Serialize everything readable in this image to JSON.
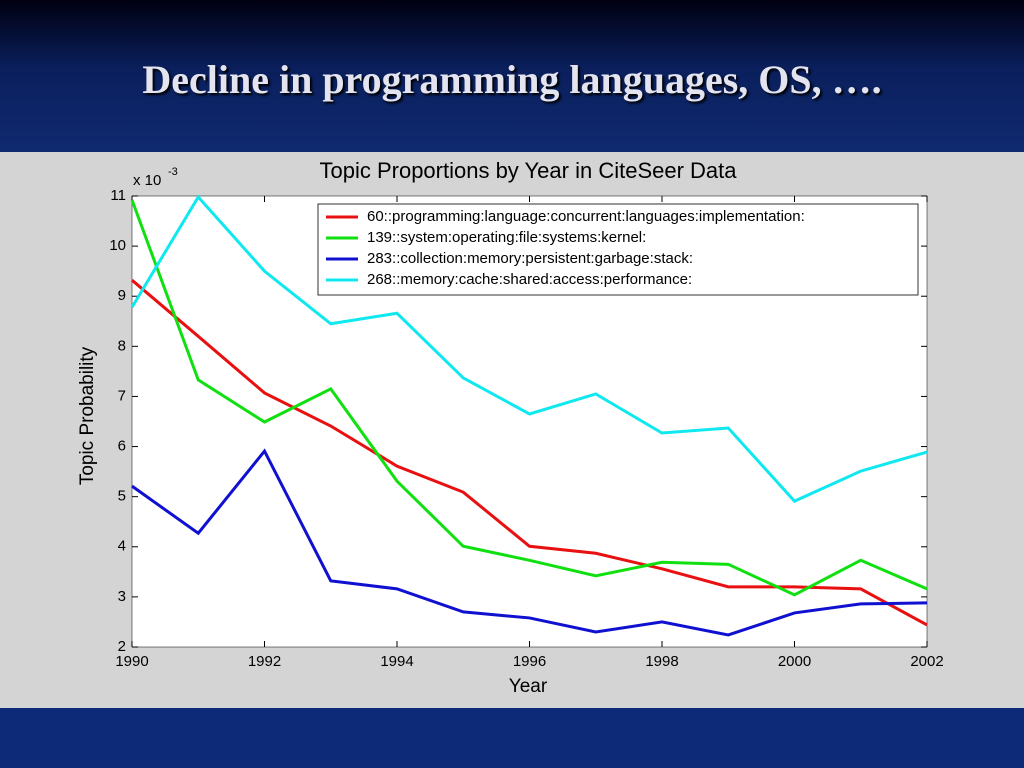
{
  "slide_title": "Decline in programming languages, OS, ….",
  "chart_data": {
    "type": "line",
    "title": "Topic Proportions by Year in CiteSeer Data",
    "x_label": "Year",
    "y_label": "Topic Probability",
    "y_multiplier": "x 10",
    "y_multiplier_exponent": "-3",
    "x": [
      1990,
      1991,
      1992,
      1993,
      1994,
      1995,
      1996,
      1997,
      1998,
      1999,
      2000,
      2001,
      2002
    ],
    "xlim": [
      1990,
      2002
    ],
    "xticks": [
      1990,
      1992,
      1994,
      1996,
      1998,
      2000,
      2002
    ],
    "ylim": [
      2,
      11
    ],
    "yticks": [
      2,
      3,
      4,
      5,
      6,
      7,
      8,
      9,
      10,
      11
    ],
    "legend": "upper right",
    "series": [
      {
        "name": "60::programming:language:concurrent:languages:implementation:",
        "color": "#e81010",
        "values": [
          9.32,
          8.2,
          7.07,
          6.41,
          5.61,
          5.09,
          4.01,
          3.87,
          3.56,
          3.2,
          3.2,
          3.16,
          2.44
        ]
      },
      {
        "name": "139::system:operating:file:systems:kernel:",
        "color": "#10e010",
        "values": [
          10.92,
          7.33,
          6.49,
          7.15,
          5.31,
          4.01,
          3.73,
          3.42,
          3.69,
          3.65,
          3.04,
          3.73,
          3.16
        ]
      },
      {
        "name": "283::collection:memory:persistent:garbage:stack:",
        "color": "#1010d0",
        "values": [
          5.21,
          4.27,
          5.91,
          3.32,
          3.16,
          2.7,
          2.58,
          2.3,
          2.5,
          2.24,
          2.68,
          2.86,
          2.88
        ]
      },
      {
        "name": "268::memory:cache:shared:access:performance:",
        "color": "#10e8f0",
        "values": [
          8.78,
          10.98,
          9.5,
          8.45,
          8.66,
          7.37,
          6.65,
          7.05,
          6.27,
          6.37,
          4.91,
          5.51,
          5.89
        ]
      }
    ]
  }
}
